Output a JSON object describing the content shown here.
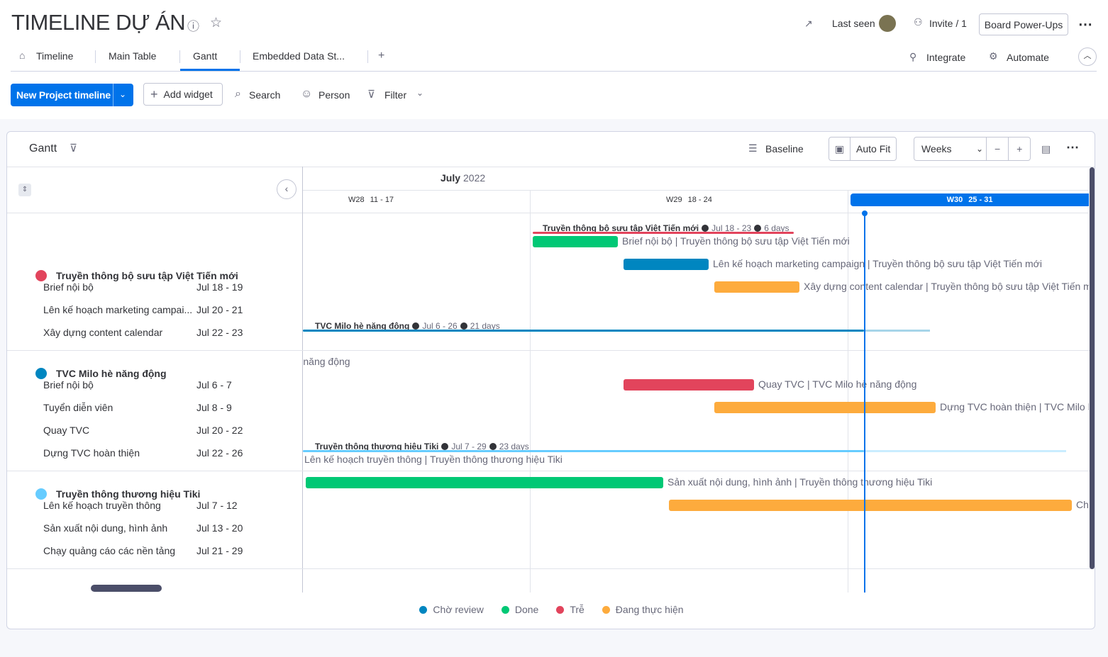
{
  "header": {
    "title": "TIMELINE DỰ ÁN",
    "last_seen": "Last seen",
    "invite": "Invite / 1",
    "power_ups": "Board Power-Ups"
  },
  "tabs": [
    "Timeline",
    "Main Table",
    "Gantt",
    "Embedded Data St..."
  ],
  "active_tab": 2,
  "right_tabs": [
    "Integrate",
    "Automate"
  ],
  "toolbar": {
    "primary": "New Project timeline",
    "add_widget": "Add widget",
    "search": "Search",
    "person": "Person",
    "filter": "Filter"
  },
  "gantt": {
    "title": "Gantt",
    "baseline": "Baseline",
    "auto_fit": "Auto Fit",
    "zoom": "Weeks",
    "month": "July",
    "year": "2022",
    "weeks": [
      {
        "label": "W28",
        "range": "11 - 17"
      },
      {
        "label": "W29",
        "range": "18 - 24"
      },
      {
        "label": "W30",
        "range": "25 - 31"
      }
    ],
    "current_week": 2,
    "groups": [
      {
        "name": "Truyền thông bộ sưu tập Việt Tiến mới",
        "color": "#e2445c",
        "dates": "Jul 18 - 23",
        "duration": "6 days",
        "items": [
          {
            "name": "Brief nội bộ",
            "dates": "Jul 18 - 19",
            "color": "#00c875",
            "bar_label": "Brief nội bộ | Truyền thông bộ sưu tập Việt Tiến mới"
          },
          {
            "name": "Lên kế hoạch marketing campai...",
            "dates": "Jul 20 - 21",
            "color": "#0086c0",
            "bar_label": "Lên kế hoạch marketing campaign | Truyền thông bộ sưu tập Việt Tiến mới"
          },
          {
            "name": "Xây dựng content calendar",
            "dates": "Jul 22 - 23",
            "color": "#fdab3d",
            "bar_label": "Xây dựng content calendar | Truyền thông bộ sưu tập Việt Tiến mới"
          }
        ]
      },
      {
        "name": "TVC Milo hè năng động",
        "color": "#0086c0",
        "dates": "Jul 6 - 26",
        "duration": "21 days",
        "items": [
          {
            "name": "Brief nội bộ",
            "dates": "Jul 6 - 7",
            "color": "#00c875",
            "bar_label": "Brief nội bộ | TVC Milo hè năng động"
          },
          {
            "name": "Tuyển diễn viên",
            "dates": "Jul 8 - 9",
            "color": "#00c875",
            "bar_label": "Tuyển diễn viên | TVC Milo hè năng động"
          },
          {
            "name": "Quay TVC",
            "dates": "Jul 20 - 22",
            "color": "#e2445c",
            "bar_label": "Quay TVC | TVC Milo hè năng động"
          },
          {
            "name": "Dựng TVC hoàn thiện",
            "dates": "Jul 22 - 26",
            "color": "#fdab3d",
            "bar_label": "Dựng TVC hoàn thiện | TVC Milo hè năng động"
          }
        ]
      },
      {
        "name": "Truyền thông thương hiệu Tiki",
        "color": "#66ccff",
        "dates": "Jul 7 - 29",
        "duration": "23 days",
        "items": [
          {
            "name": "Lên kế hoạch truyền thông",
            "dates": "Jul 7 - 12",
            "color": "#00c875",
            "bar_label": "Lên kế hoạch truyền thông | Truyền thông thương hiệu Tiki"
          },
          {
            "name": "Sản xuất nội dung, hình ảnh",
            "dates": "Jul 13 - 20",
            "color": "#00c875",
            "bar_label": "Sản xuất nội dung, hình ảnh | Truyền thông thương hiệu Tiki"
          },
          {
            "name": "Chạy quảng cáo các nền tảng",
            "dates": "Jul 21 - 29",
            "color": "#fdab3d",
            "bar_label": "Chạy quảng cáo các nền tảng | Truyền thông thương hiệu Tiki"
          }
        ]
      }
    ],
    "legend": [
      {
        "label": "Chờ review",
        "color": "#0086c0"
      },
      {
        "label": "Done",
        "color": "#00c875"
      },
      {
        "label": "Trễ",
        "color": "#e2445c"
      },
      {
        "label": "Đang thực hiện",
        "color": "#fdab3d"
      }
    ]
  }
}
